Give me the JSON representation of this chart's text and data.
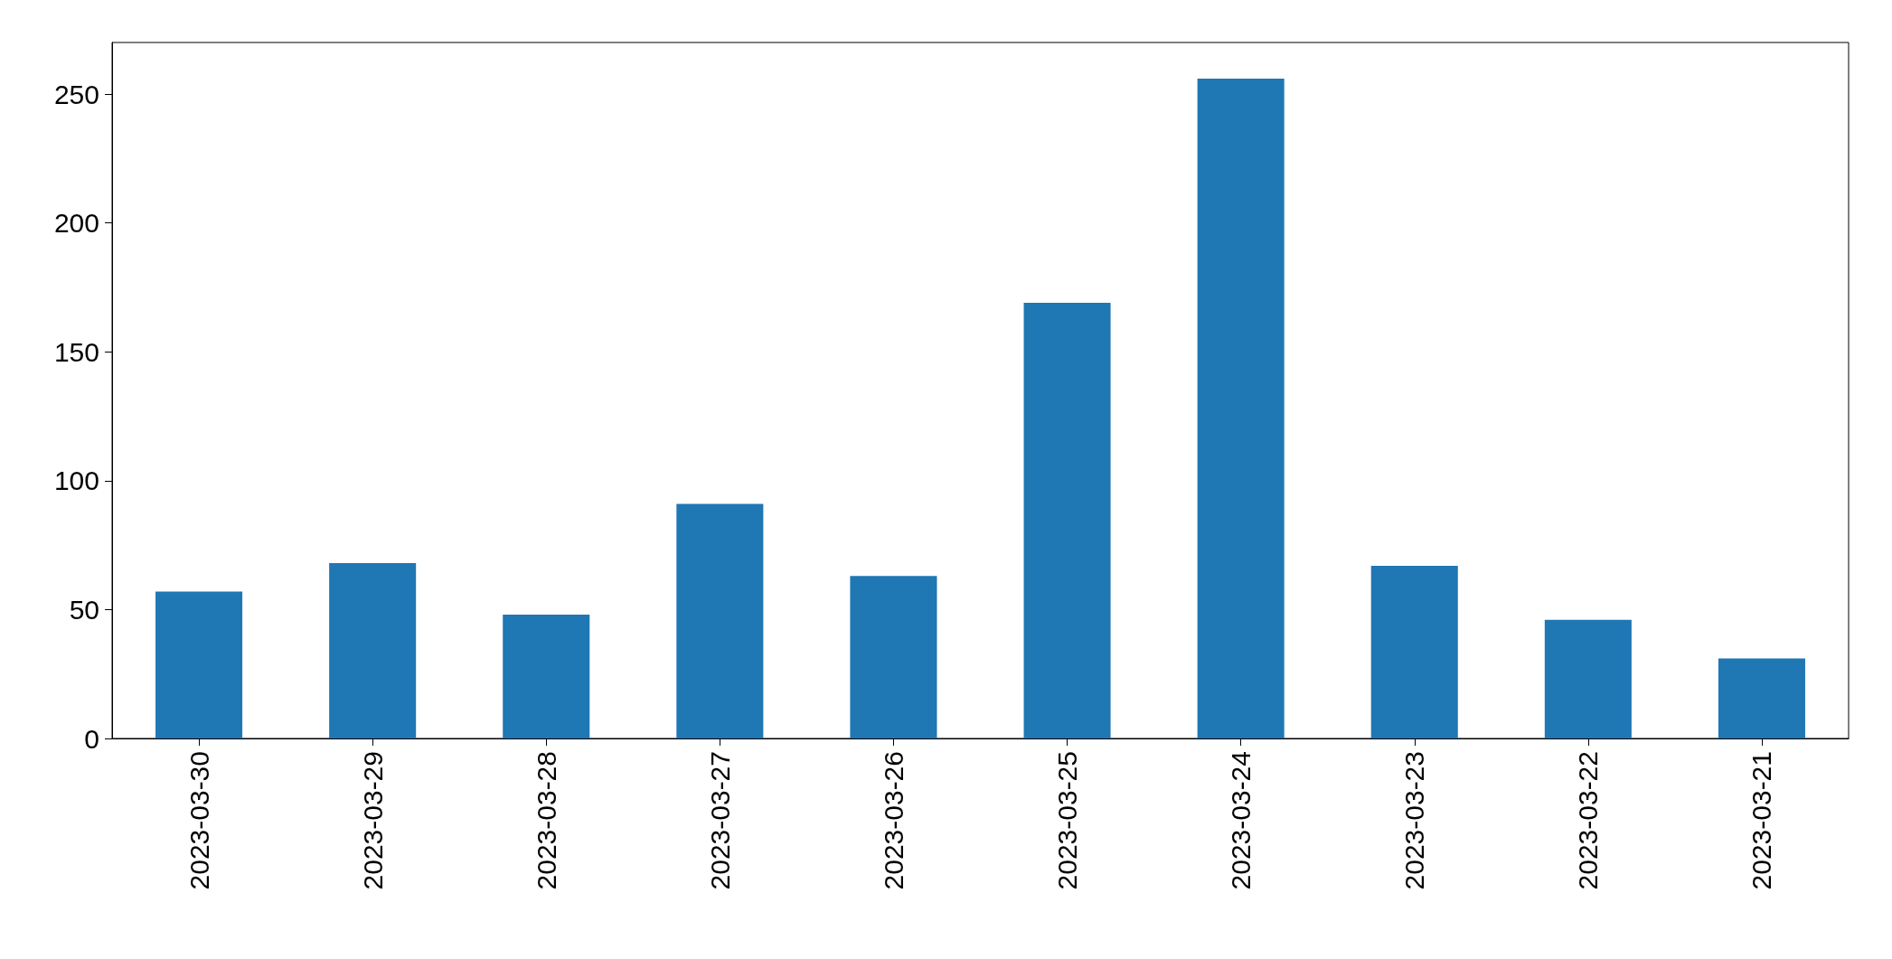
{
  "chart_data": {
    "type": "bar",
    "categories": [
      "2023-03-30",
      "2023-03-29",
      "2023-03-28",
      "2023-03-27",
      "2023-03-26",
      "2023-03-25",
      "2023-03-24",
      "2023-03-23",
      "2023-03-22",
      "2023-03-21"
    ],
    "values": [
      57,
      68,
      48,
      91,
      63,
      169,
      256,
      67,
      46,
      31
    ],
    "color": "#1f77b4",
    "ylim": [
      0,
      270
    ],
    "yticks": [
      0,
      50,
      100,
      150,
      200,
      250
    ],
    "grid": false
  }
}
